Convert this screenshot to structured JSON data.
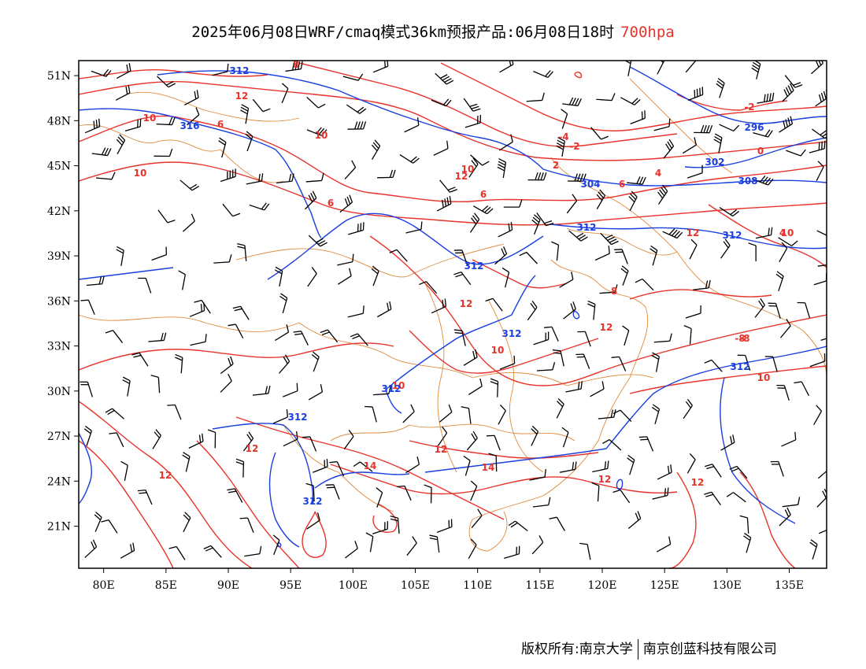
{
  "title": {
    "main": "2025年06月08日WRF/cmaq模式36km预报产品:06月08日18时",
    "level": "700hpa"
  },
  "axes": {
    "lat_labels": [
      "51N",
      "48N",
      "45N",
      "42N",
      "39N",
      "36N",
      "33N",
      "30N",
      "27N",
      "24N",
      "21N"
    ],
    "lat_values": [
      51,
      48,
      45,
      42,
      39,
      36,
      33,
      30,
      27,
      24,
      21
    ],
    "lon_labels": [
      "80E",
      "85E",
      "90E",
      "95E",
      "100E",
      "105E",
      "110E",
      "115E",
      "120E",
      "125E",
      "130E",
      "135E"
    ],
    "lon_values": [
      80,
      85,
      90,
      95,
      100,
      105,
      110,
      115,
      120,
      125,
      130,
      135
    ],
    "lon_range": [
      78,
      138
    ],
    "lat_range": [
      18.2,
      52
    ]
  },
  "layers": {
    "height_contours": {
      "color": "#1a3fe0",
      "labels": [
        "312",
        "316",
        "296",
        "302",
        "304",
        "308",
        "312",
        "312",
        "312",
        "312",
        "312",
        "312",
        "312",
        "312"
      ]
    },
    "temperature_contours": {
      "color": "#e8332b",
      "labels": [
        "8",
        "12",
        "10",
        "6",
        "10",
        "10",
        "12",
        "6",
        "6",
        "10",
        "4",
        "-4",
        "-2",
        "2",
        "0",
        "-2",
        "8",
        "4",
        "6",
        "-8",
        "12",
        "10",
        "12",
        "10",
        "10",
        "12",
        "14",
        "12",
        "12",
        "14",
        "12",
        "12",
        "12",
        "10",
        "-8",
        "12"
      ]
    },
    "boundaries": {
      "color": "#e08a3a"
    },
    "wind_barbs": {
      "color": "#000000"
    }
  },
  "copyright": {
    "left": "版权所有:南京大学",
    "right": "南京创蓝科技有限公司"
  }
}
